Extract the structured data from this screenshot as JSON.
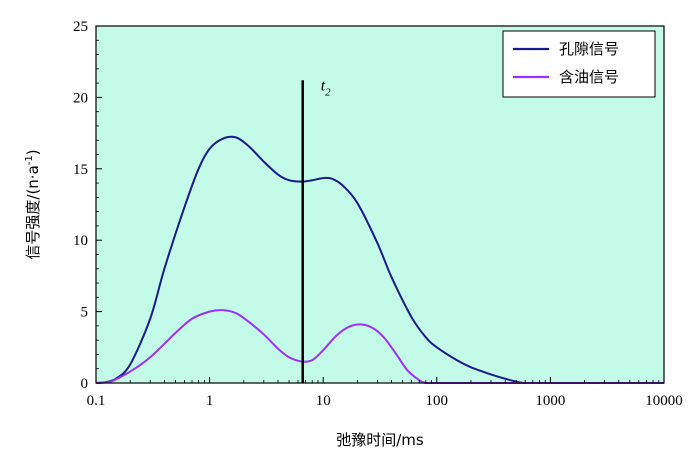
{
  "chart_data": {
    "type": "line",
    "x_scale": "log",
    "xlabel": "弛豫时间/ms",
    "ylabel": "信号强度/(n·a",
    "ylabel_sup": "-1",
    "ylabel_close": ")",
    "xlim": [
      0.1,
      10000
    ],
    "ylim": [
      0,
      25
    ],
    "x_ticks": [
      0.1,
      1,
      10,
      100,
      1000,
      10000
    ],
    "x_tick_labels": [
      "0.1",
      "1",
      "10",
      "100",
      "1000",
      "10000"
    ],
    "y_ticks": [
      0,
      5,
      10,
      15,
      20,
      25
    ],
    "y_tick_labels": [
      "0",
      "5",
      "10",
      "15",
      "20",
      "25"
    ],
    "grid": false,
    "plot_background": "#c4fbe8",
    "legend_position": "top-right",
    "series": [
      {
        "name": "孔隙信号",
        "color": "#1a1a8c",
        "x": [
          0.1,
          0.12,
          0.15,
          0.2,
          0.3,
          0.4,
          0.6,
          0.8,
          1.0,
          1.3,
          1.7,
          2.2,
          3,
          4,
          5,
          6.5,
          8,
          10,
          12,
          15,
          20,
          30,
          40,
          60,
          80,
          100,
          150,
          200,
          300,
          400,
          500,
          600,
          1000,
          10000
        ],
        "y": [
          0,
          0.05,
          0.3,
          1.3,
          4.5,
          8,
          12.3,
          15,
          16.4,
          17.1,
          17.2,
          16.6,
          15.5,
          14.6,
          14.2,
          14.1,
          14.2,
          14.35,
          14.3,
          13.8,
          12.6,
          9.8,
          7.4,
          4.6,
          3.2,
          2.5,
          1.6,
          1.1,
          0.6,
          0.3,
          0.1,
          0,
          0,
          0
        ]
      },
      {
        "name": "含油信号",
        "color": "#9b30ff",
        "x": [
          0.1,
          0.13,
          0.2,
          0.3,
          0.5,
          0.7,
          1.0,
          1.3,
          1.7,
          2.2,
          3,
          4,
          5,
          6.5,
          8,
          10,
          13,
          17,
          22,
          28,
          35,
          45,
          55,
          70,
          80,
          100,
          1000,
          10000
        ],
        "y": [
          0,
          0.05,
          0.8,
          1.8,
          3.5,
          4.5,
          5.0,
          5.1,
          4.9,
          4.3,
          3.4,
          2.4,
          1.8,
          1.5,
          1.6,
          2.3,
          3.3,
          3.95,
          4.1,
          3.8,
          3.1,
          1.9,
          0.9,
          0.2,
          0,
          0,
          0,
          0
        ]
      }
    ],
    "annotation": {
      "type": "vline",
      "x": 6.6,
      "y_top": 21.2,
      "label": "t",
      "label_sub": "2",
      "color": "#000000"
    }
  }
}
